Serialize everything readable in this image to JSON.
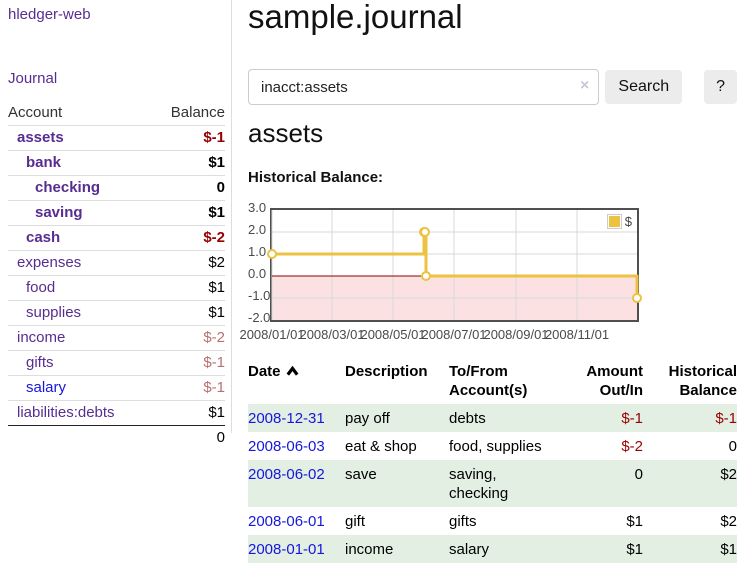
{
  "app": {
    "title": "hledger-web"
  },
  "colors": {
    "link_purple": "#572d91",
    "link_blue": "#1616dd",
    "negative_strong": "#990000",
    "negative_soft": "#b87070",
    "row_stripe_green": "#e2efe2"
  },
  "sidebar": {
    "journal_label": "Journal",
    "accounts_table": {
      "headers": {
        "account": "Account",
        "balance": "Balance"
      },
      "rows": [
        {
          "name": "assets",
          "balance": "$-1",
          "depth": 1,
          "bold": true,
          "neg": "strong"
        },
        {
          "name": "bank",
          "balance": "$1",
          "depth": 2,
          "bold": true
        },
        {
          "name": "checking",
          "balance": "0",
          "depth": 3,
          "bold": true
        },
        {
          "name": "saving",
          "balance": "$1",
          "depth": 3,
          "bold": true
        },
        {
          "name": "cash",
          "balance": "$-2",
          "depth": 2,
          "bold": true,
          "neg": "strong"
        },
        {
          "name": "expenses",
          "balance": "$2",
          "depth": 1
        },
        {
          "name": "food",
          "balance": "$1",
          "depth": 2
        },
        {
          "name": "supplies",
          "balance": "$1",
          "depth": 2
        },
        {
          "name": "income",
          "balance": "$-2",
          "depth": 1,
          "neg": "soft"
        },
        {
          "name": "gifts",
          "balance": "$-1",
          "depth": 2,
          "neg": "soft"
        },
        {
          "name": "salary",
          "balance": "$-1",
          "depth": 2,
          "neg": "soft",
          "link_style": "unvisited"
        },
        {
          "name": "liabilities:debts",
          "balance": "$1",
          "depth": 1
        }
      ],
      "total": "0"
    }
  },
  "main": {
    "title": "sample.journal",
    "search": {
      "value": "inacct:assets",
      "clear_icon": "×",
      "button_label": "Search",
      "help_label": "?"
    },
    "account_heading": "assets"
  },
  "chart_data": {
    "type": "line",
    "title": "Historical Balance:",
    "step": true,
    "grid": true,
    "legend_position": "top-right",
    "ylim": [
      -2,
      3
    ],
    "y_ticks": [
      "3.0",
      "2.0",
      "1.0",
      "0.0",
      "-1.0",
      "-2.0"
    ],
    "x_ticks": [
      "2008/01/01",
      "2008/03/01",
      "2008/05/01",
      "2008/07/01",
      "2008/09/01",
      "2008/11/01"
    ],
    "x_tick_days": [
      0,
      60,
      121,
      182,
      244,
      305
    ],
    "x_range_days": 365,
    "series": [
      {
        "name": "$",
        "color": "#edc240",
        "points": [
          {
            "date": "2008-01-01",
            "day": 0,
            "value": 1
          },
          {
            "date": "2008-06-01",
            "day": 152,
            "value": 2
          },
          {
            "date": "2008-06-02",
            "day": 153,
            "value": 2
          },
          {
            "date": "2008-06-03",
            "day": 154,
            "value": 0
          },
          {
            "date": "2008-12-31",
            "day": 365,
            "value": -1
          }
        ]
      }
    ],
    "negative_fill": "#fbe1e1",
    "zero_line_color": "#8b0000",
    "gridline_color": "#d9d9d9"
  },
  "register_table": {
    "headers": [
      "Date",
      "Description",
      "To/From Account(s)",
      "Amount Out/In",
      "Historical Balance"
    ],
    "sort_icon": "sort-ascending-icon",
    "rows": [
      {
        "date": "2008-12-31",
        "description": "pay off",
        "accounts": "debts",
        "amount": "$-1",
        "amount_neg": true,
        "balance": "$-1",
        "balance_neg": true
      },
      {
        "date": "2008-06-03",
        "description": "eat & shop",
        "accounts": "food, supplies",
        "amount": "$-2",
        "amount_neg": true,
        "balance": "0",
        "balance_neg": false
      },
      {
        "date": "2008-06-02",
        "description": "save",
        "accounts": "saving, checking",
        "amount": "0",
        "amount_neg": false,
        "balance": "$2",
        "balance_neg": false
      },
      {
        "date": "2008-06-01",
        "description": "gift",
        "accounts": "gifts",
        "amount": "$1",
        "amount_neg": false,
        "balance": "$2",
        "balance_neg": false
      },
      {
        "date": "2008-01-01",
        "description": "income",
        "accounts": "salary",
        "amount": "$1",
        "amount_neg": false,
        "balance": "$1",
        "balance_neg": false
      }
    ]
  }
}
